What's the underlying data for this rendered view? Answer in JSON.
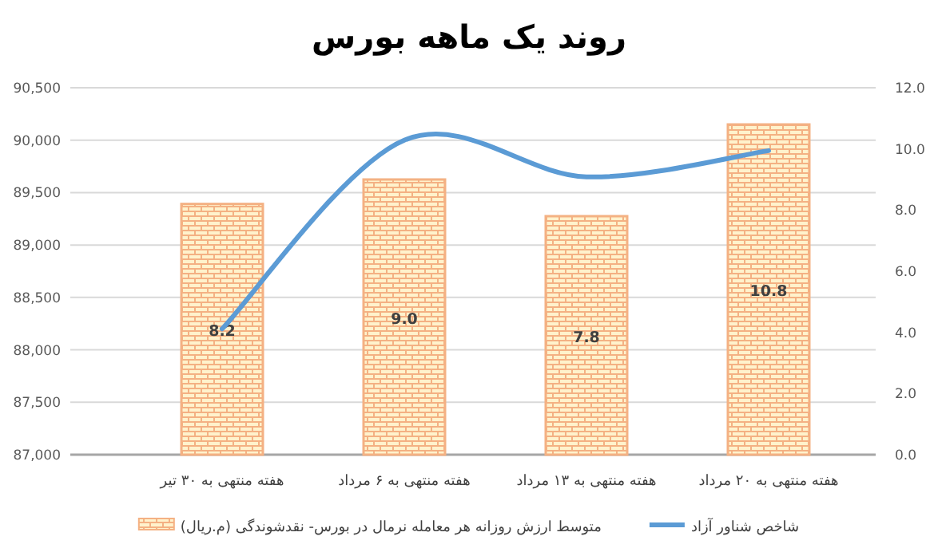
{
  "chart_data": {
    "type": "bar",
    "title": "روند یک ماهه بورس",
    "categories": [
      "هفته منتهی به ۳۰ تیر",
      "هفته منتهی به ۶ مرداد",
      "هفته منتهی به ۱۳ مرداد",
      "هفته منتهی به ۲۰ مرداد"
    ],
    "series": [
      {
        "name": "متوسط ارزش روزانه هر معامله نرمال در بورس- نقدشوندگی (م.ریال)",
        "axis": "y2",
        "color": "#f4b183",
        "values": [
          8.2,
          9.0,
          7.8,
          10.8
        ],
        "value_labels": [
          "8.2",
          "9.0",
          "7.8",
          "10.8"
        ]
      },
      {
        "name": "شاخص شناور آزاد",
        "type": "line",
        "axis": "y",
        "color": "#5b9bd5",
        "values": [
          88200,
          90000,
          89650,
          89900
        ]
      }
    ],
    "ylim": [
      87000,
      90500
    ],
    "yticks": [
      {
        "value": 87000,
        "label": "87,000"
      },
      {
        "value": 87500,
        "label": "87,500"
      },
      {
        "value": 88000,
        "label": "88,000"
      },
      {
        "value": 88500,
        "label": "88,500"
      },
      {
        "value": 89000,
        "label": "89,000"
      },
      {
        "value": 89500,
        "label": "89,500"
      },
      {
        "value": 90000,
        "label": "90,000"
      },
      {
        "value": 90500,
        "label": "90,500"
      }
    ],
    "y2lim": [
      0,
      12
    ],
    "y2ticks": [
      {
        "value": 0,
        "label": "0.0"
      },
      {
        "value": 2,
        "label": "2.0"
      },
      {
        "value": 4,
        "label": "4.0"
      },
      {
        "value": 6,
        "label": "6.0"
      },
      {
        "value": 8,
        "label": "8.0"
      },
      {
        "value": 10,
        "label": "10.0"
      },
      {
        "value": 12,
        "label": "12.0"
      }
    ],
    "grid": "y",
    "legend": "bottom",
    "marker": "none",
    "line_style": "solid"
  }
}
